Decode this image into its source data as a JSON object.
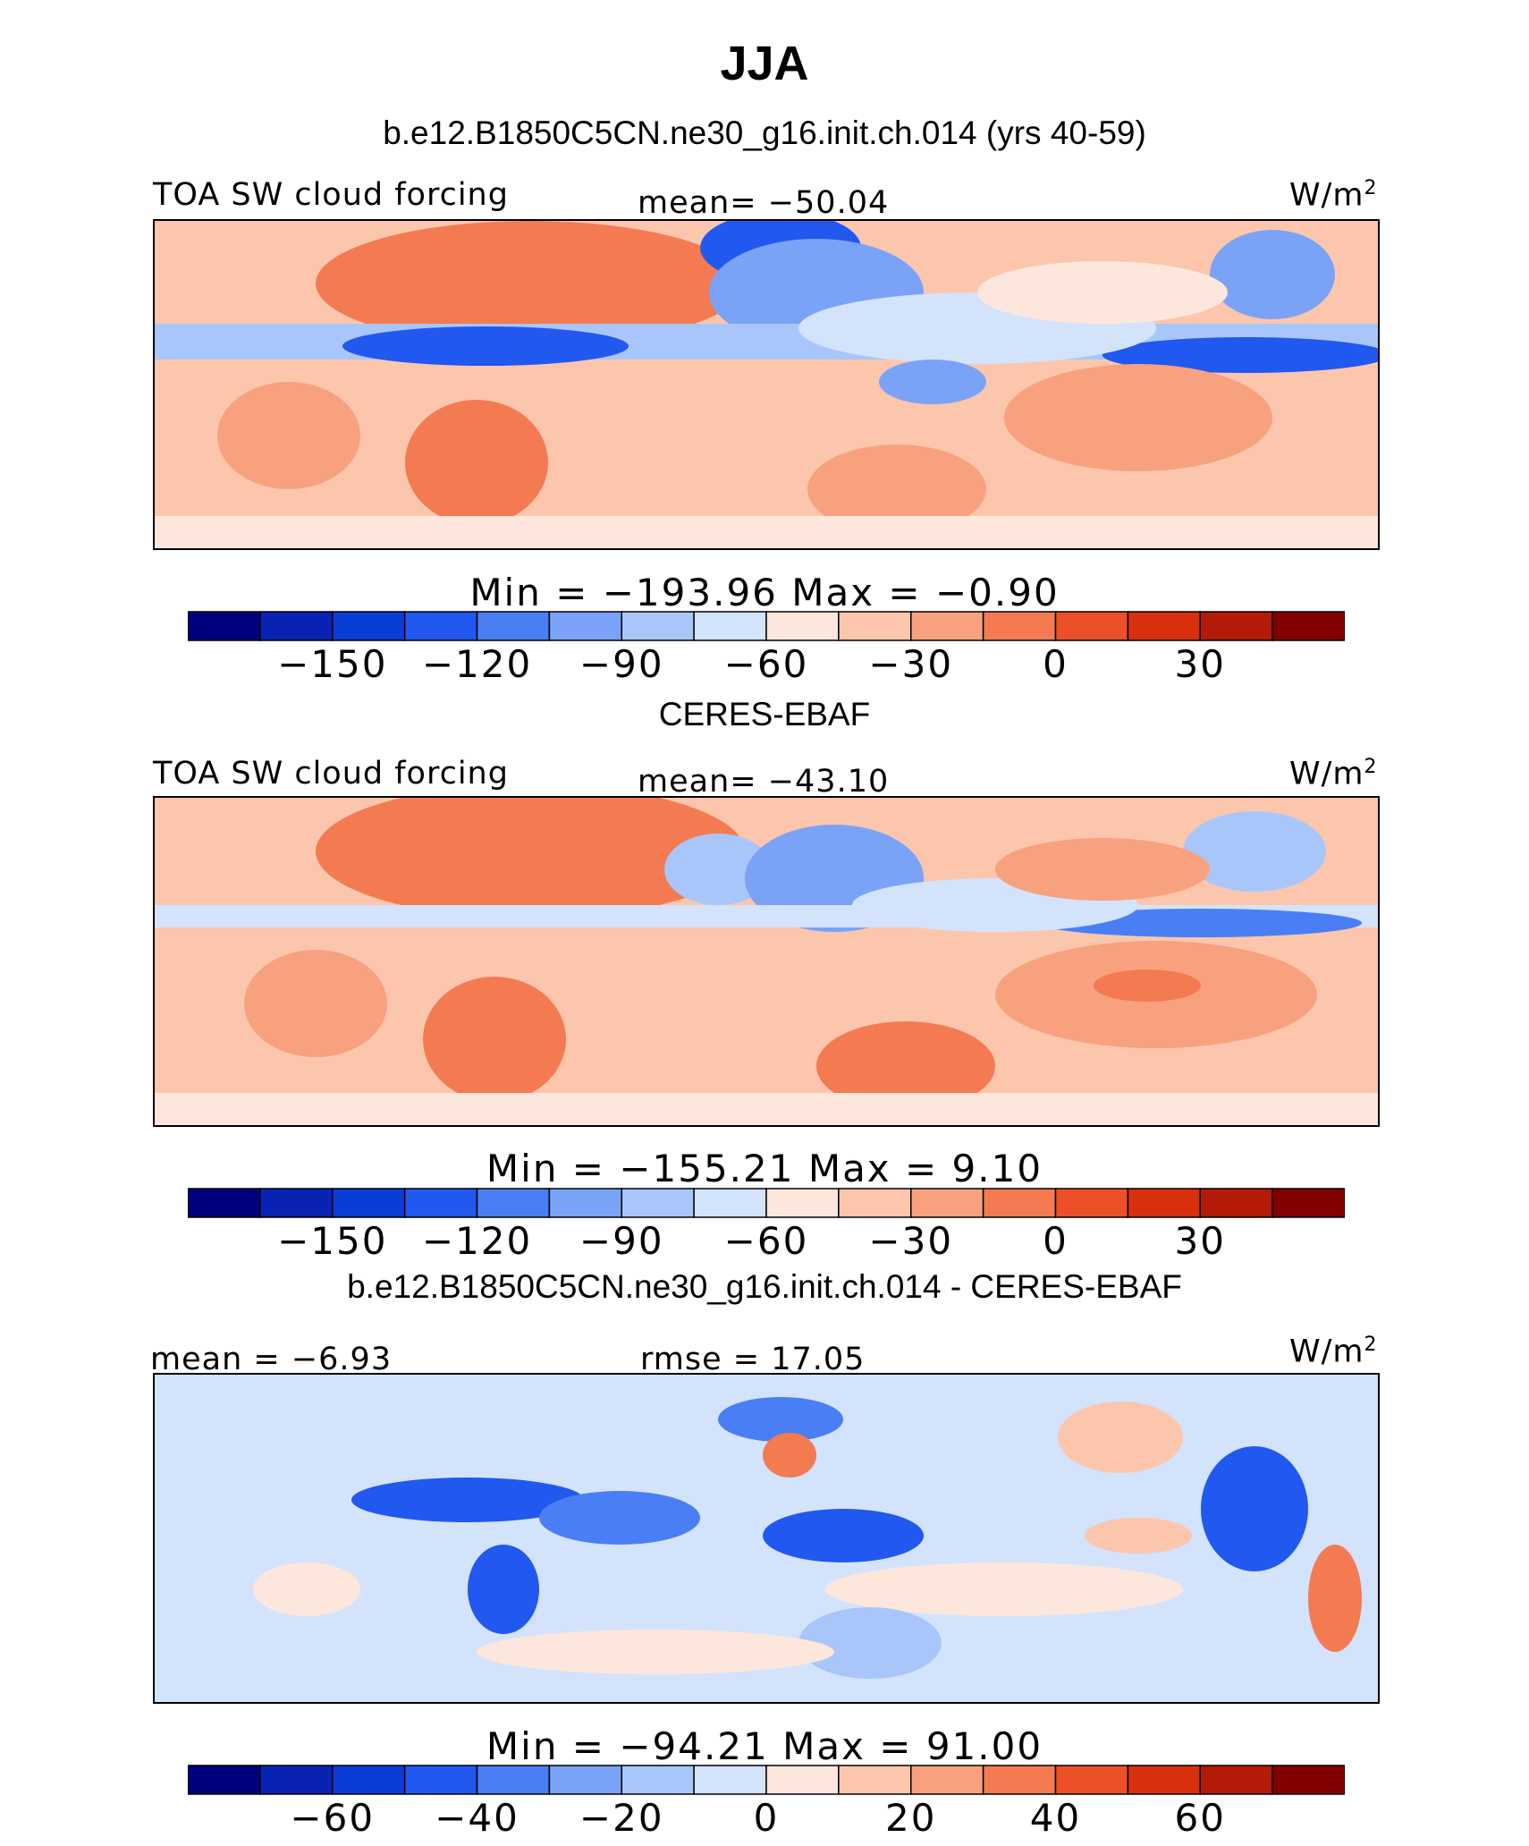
{
  "title": "JJA",
  "colors": [
    "#00007f",
    "#0a22b4",
    "#0a3cd6",
    "#2158f0",
    "#4a7ef5",
    "#7aa3f7",
    "#a9c6fa",
    "#d3e3fb",
    "#fde7dc",
    "#fcc6ad",
    "#f8a17f",
    "#f47a52",
    "#ec5029",
    "#d8300e",
    "#b31a08",
    "#830000"
  ],
  "panels": [
    {
      "id": "model",
      "subtitle": "b.e12.B1850C5CN.ne30_g16.init.ch.014 (yrs 40-59)",
      "left_label": "TOA SW cloud forcing",
      "center_label": "mean= −50.04",
      "units_base": "W/m",
      "units_sup": "2",
      "min_max": "Min  =  −193.96  Max  =   −0.90",
      "tick_labels": [
        "−150",
        "−120",
        "−90",
        "−60",
        "−30",
        "0",
        "30"
      ],
      "background_color": "#fcc6ad"
    },
    {
      "id": "obs",
      "subtitle": "CERES-EBAF",
      "left_label": "TOA SW cloud forcing",
      "center_label": "mean= −43.10",
      "units_base": "W/m",
      "units_sup": "2",
      "min_max": "Min  =  −155.21  Max  =    9.10",
      "tick_labels": [
        "−150",
        "−120",
        "−90",
        "−60",
        "−30",
        "0",
        "30"
      ],
      "background_color": "#fcc6ad"
    },
    {
      "id": "diff",
      "subtitle": "b.e12.B1850C5CN.ne30_g16.init.ch.014 - CERES-EBAF",
      "left_label": "mean =   −6.93",
      "center_label": "rmse  =   17.05",
      "units_base": "W/m",
      "units_sup": "2",
      "min_max": "Min  =  −94.21  Max  =   91.00",
      "tick_labels": [
        "−60",
        "−40",
        "−20",
        "0",
        "20",
        "40",
        "60"
      ],
      "background_color": "#d3e3fb"
    }
  ],
  "chart_data": [
    {
      "type": "heatmap",
      "title": "TOA SW cloud forcing",
      "subtitle": "b.e12.B1850C5CN.ne30_g16.init.ch.014 (yrs 40-59)",
      "units": "W/m2",
      "mean": -50.04,
      "min": -193.96,
      "max": -0.9,
      "colorbar_levels": [
        -165,
        -150,
        -135,
        -120,
        -105,
        -90,
        -75,
        -60,
        -45,
        -30,
        -15,
        0,
        15,
        30,
        45
      ],
      "colorbar_ticks": [
        -150,
        -120,
        -90,
        -60,
        -30,
        0,
        30
      ]
    },
    {
      "type": "heatmap",
      "title": "TOA SW cloud forcing",
      "subtitle": "CERES-EBAF",
      "units": "W/m2",
      "mean": -43.1,
      "min": -155.21,
      "max": 9.1,
      "colorbar_levels": [
        -165,
        -150,
        -135,
        -120,
        -105,
        -90,
        -75,
        -60,
        -45,
        -30,
        -15,
        0,
        15,
        30,
        45
      ],
      "colorbar_ticks": [
        -150,
        -120,
        -90,
        -60,
        -30,
        0,
        30
      ]
    },
    {
      "type": "heatmap",
      "subtitle": "b.e12.B1850C5CN.ne30_g16.init.ch.014 - CERES-EBAF",
      "units": "W/m2",
      "mean": -6.93,
      "rmse": 17.05,
      "min": -94.21,
      "max": 91.0,
      "colorbar_levels": [
        -70,
        -60,
        -50,
        -40,
        -30,
        -20,
        -10,
        0,
        10,
        20,
        30,
        40,
        50,
        60,
        70
      ],
      "colorbar_ticks": [
        -60,
        -40,
        -20,
        0,
        20,
        40,
        60
      ]
    }
  ]
}
